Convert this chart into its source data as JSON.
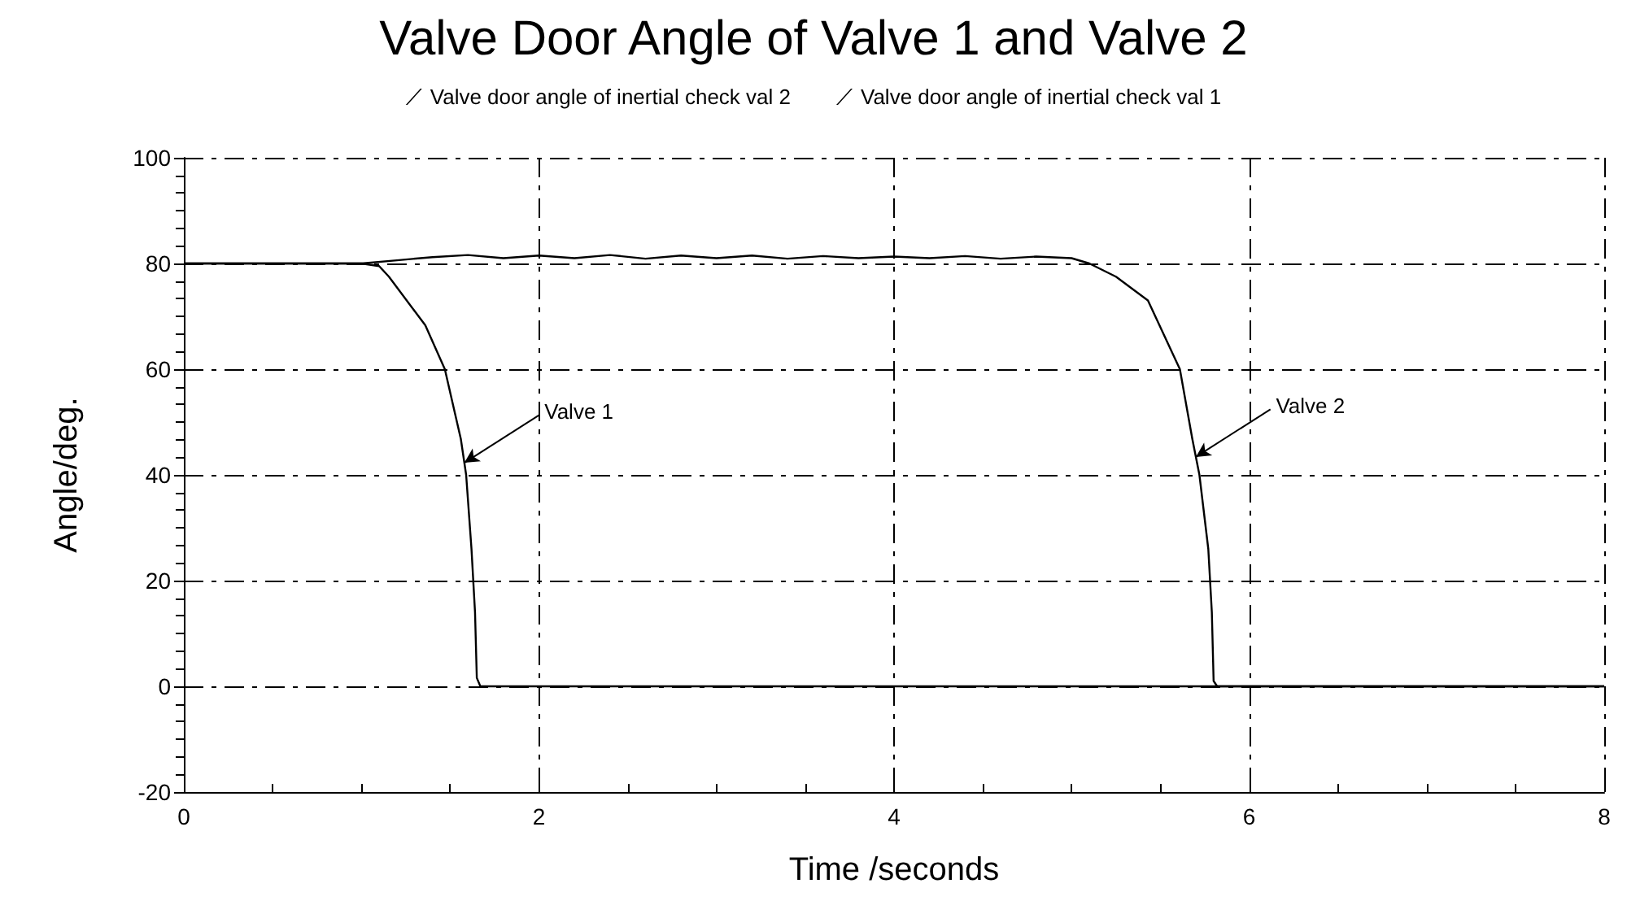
{
  "chart_data": {
    "type": "line",
    "title": "Valve Door Angle of Valve 1 and Valve 2",
    "xlabel": "Time /seconds",
    "ylabel": "Angle/deg.",
    "xlim": [
      0,
      8
    ],
    "xticks": [
      0,
      2,
      4,
      6,
      8
    ],
    "ylim": [
      -20,
      100
    ],
    "yticks": [
      -20,
      0,
      20,
      40,
      60,
      80,
      100
    ],
    "grid": true,
    "legend": "top",
    "marker": "none",
    "line_style": "solid",
    "series": [
      {
        "name": "Valve door angle of inertial check val 2",
        "color": "#000000",
        "x": [
          0,
          1.0,
          1.2,
          1.4,
          1.6,
          1.8,
          2.0,
          2.2,
          2.4,
          2.6,
          2.8,
          3.0,
          3.2,
          3.4,
          3.6,
          3.8,
          4.0,
          4.2,
          4.4,
          4.6,
          4.8,
          5.0,
          5.1,
          5.25,
          5.43,
          5.61,
          5.68,
          5.72,
          5.77,
          5.79,
          5.8,
          5.82,
          8
        ],
        "values": [
          80,
          80,
          80.6,
          81.2,
          81.6,
          81,
          81.5,
          81,
          81.6,
          80.9,
          81.5,
          81,
          81.5,
          80.9,
          81.4,
          81,
          81.3,
          81,
          81.4,
          80.9,
          81.3,
          81,
          80,
          77.5,
          73,
          60,
          46.8,
          40,
          26,
          14,
          1,
          0,
          0
        ]
      },
      {
        "name": "Valve door angle of inertial check val 1",
        "color": "#000000",
        "x": [
          0,
          1.0,
          1.1,
          1.155,
          1.36,
          1.47,
          1.56,
          1.59,
          1.62,
          1.64,
          1.65,
          1.67,
          8
        ],
        "values": [
          80,
          80,
          79.5,
          77.5,
          68.3,
          60,
          46.8,
          40,
          26,
          14,
          1.6,
          0,
          0
        ]
      }
    ],
    "annotations": [
      {
        "text": "Valve 1",
        "x": 1.58,
        "y": 42.3
      },
      {
        "text": "Valve 2",
        "x": 5.7,
        "y": 43.4
      }
    ]
  }
}
